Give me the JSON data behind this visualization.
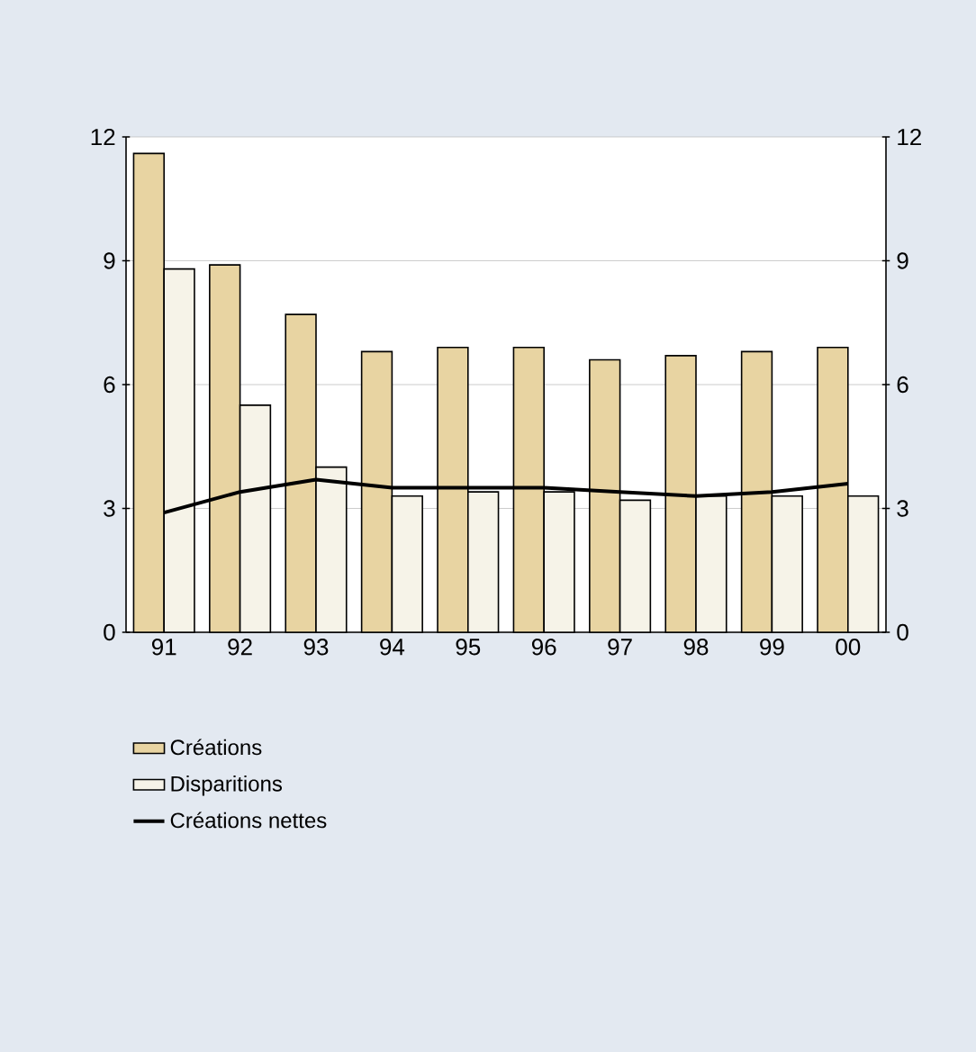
{
  "chart_data": {
    "type": "bar",
    "categories": [
      "91",
      "92",
      "93",
      "94",
      "95",
      "96",
      "97",
      "98",
      "99",
      "00"
    ],
    "series": [
      {
        "name": "Créations",
        "color": "#e8d4a2",
        "values": [
          11.6,
          8.9,
          7.7,
          6.8,
          6.9,
          6.9,
          6.6,
          6.7,
          6.8,
          6.9
        ]
      },
      {
        "name": "Disparitions",
        "color": "#f6f3e8",
        "values": [
          8.8,
          5.5,
          4.0,
          3.3,
          3.4,
          3.4,
          3.2,
          3.3,
          3.3,
          3.3
        ]
      },
      {
        "name": "Créations nettes",
        "type": "line",
        "color": "#000000",
        "values": [
          2.9,
          3.4,
          3.7,
          3.5,
          3.5,
          3.5,
          3.4,
          3.3,
          3.4,
          3.6
        ]
      }
    ],
    "ylim": [
      0,
      12
    ],
    "yticks": [
      0,
      3,
      6,
      9,
      12
    ],
    "y2lim": [
      0,
      12
    ],
    "y2ticks": [
      0,
      3,
      6,
      9,
      12
    ],
    "grid": "y",
    "legend": "bottom left",
    "marker": "none",
    "line_style": "solid"
  }
}
